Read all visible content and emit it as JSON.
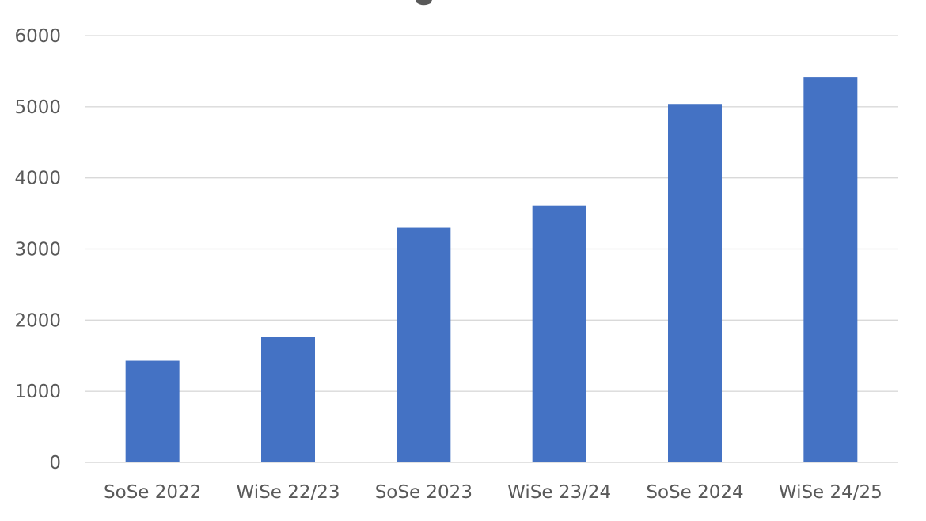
{
  "chart_data": {
    "type": "bar",
    "title": "",
    "xlabel": "",
    "ylabel": "",
    "categories": [
      "SoSe 2022",
      "WiSe 22/23",
      "SoSe 2023",
      "WiSe 23/24",
      "SoSe 2024",
      "WiSe 24/25"
    ],
    "values": [
      1430,
      1760,
      3300,
      3610,
      5040,
      5420
    ],
    "ylim": [
      0,
      6000
    ],
    "yticks": [
      "0",
      "1000",
      "2000",
      "3000",
      "4000",
      "5000",
      "6000"
    ],
    "grid": true,
    "legend": "none",
    "bar_color": "#4472C4",
    "text_color": "#595959",
    "grid_color": "#D9D9D9"
  }
}
